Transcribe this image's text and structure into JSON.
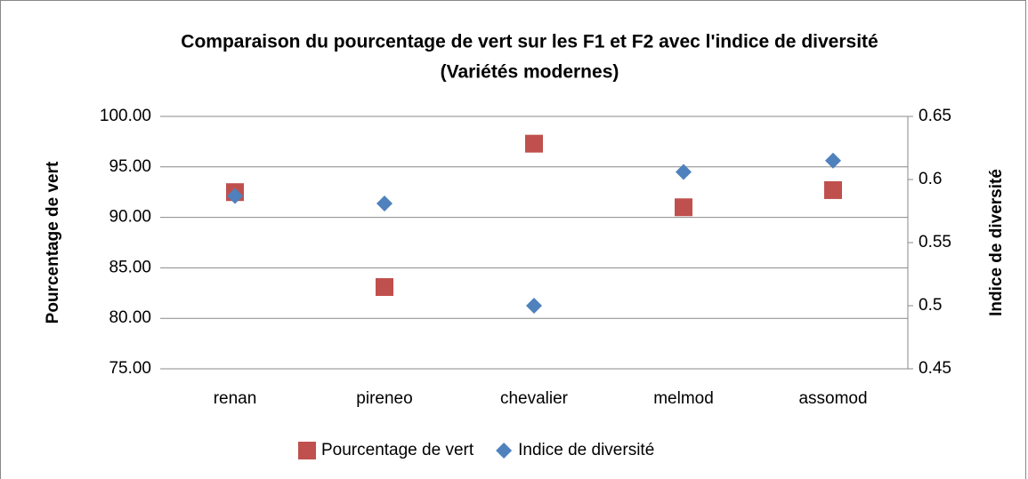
{
  "chart_data": {
    "type": "scatter",
    "title": "Comparaison du pourcentage de vert sur les F1 et F2 avec l'indice de diversité",
    "subtitle": "(Variétés modernes)",
    "ylabel": "Pourcentage de vert",
    "y2label": "Indice de diversité",
    "categories": [
      "renan",
      "pireneo",
      "chevalier",
      "melmod",
      "assomod"
    ],
    "series": [
      {
        "name": "Pourcentage de vert",
        "color": "#c0504d",
        "marker": "square",
        "values": [
          92.5,
          83.1,
          97.3,
          91.0,
          92.7
        ]
      },
      {
        "name": "Indice de diversité",
        "color": "#4f81bd",
        "marker": "diamond",
        "axis": "y2",
        "values": [
          0.587,
          0.581,
          0.5,
          0.606,
          0.615
        ]
      }
    ],
    "ylim": [
      75,
      100
    ],
    "yticks": [
      {
        "value": 75,
        "label": "75.00"
      },
      {
        "value": 80,
        "label": "80.00"
      },
      {
        "value": 85,
        "label": "85.00"
      },
      {
        "value": 90,
        "label": "90.00"
      },
      {
        "value": 95,
        "label": "95.00"
      },
      {
        "value": 100,
        "label": "100.00"
      }
    ],
    "y2lim": [
      0.45,
      0.65
    ],
    "y2ticks": [
      0.45,
      0.5,
      0.55,
      0.6,
      0.65
    ],
    "grid": true,
    "legend": "bottom"
  }
}
